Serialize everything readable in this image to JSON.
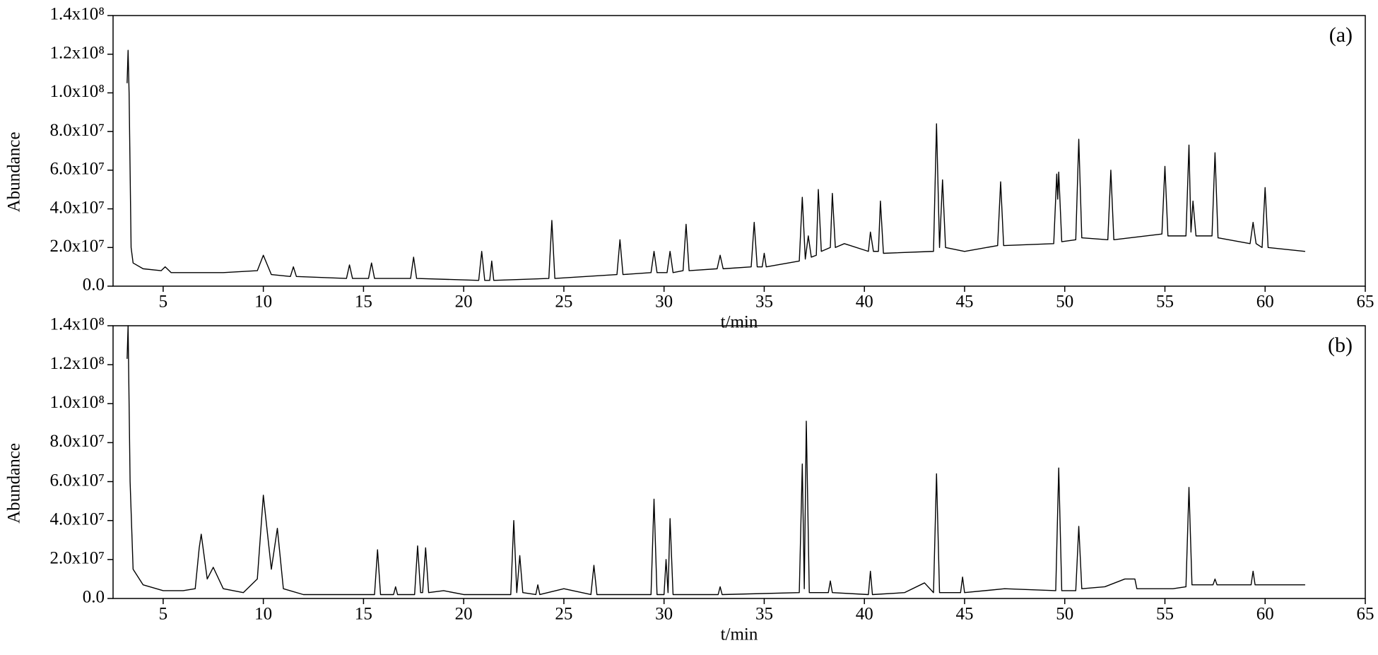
{
  "chart_data": [
    {
      "type": "line",
      "annotation": "(a)",
      "ylabel": "Abundance",
      "xlabel": "t/min",
      "color": "#000000",
      "xlim": [
        2.5,
        65
      ],
      "xticks": [
        5,
        10,
        15,
        20,
        25,
        30,
        35,
        40,
        45,
        50,
        55,
        60,
        65
      ],
      "ylim": [
        0,
        140000000.0
      ],
      "yticks": [
        {
          "value": 0,
          "label": "0.0"
        },
        {
          "value": 20000000.0,
          "label": "2.0x10⁷"
        },
        {
          "value": 40000000.0,
          "label": "4.0x10⁷"
        },
        {
          "value": 60000000.0,
          "label": "6.0x10⁷"
        },
        {
          "value": 80000000.0,
          "label": "8.0x10⁷"
        },
        {
          "value": 100000000.0,
          "label": "1.0x10⁸"
        },
        {
          "value": 120000000.0,
          "label": "1.2x10⁸"
        },
        {
          "value": 140000000.0,
          "label": "1.4x10⁸"
        }
      ],
      "x": [
        3.2,
        3.25,
        3.3,
        3.4,
        3.5,
        4,
        4.9,
        5.1,
        5.4,
        6,
        8,
        9.7,
        10,
        10.4,
        11.35,
        11.5,
        11.65,
        14.15,
        14.3,
        14.45,
        15.25,
        15.4,
        15.55,
        17.35,
        17.5,
        17.65,
        20.75,
        20.9,
        21.05,
        21.3,
        21.4,
        21.5,
        24.25,
        24.4,
        24.55,
        27.65,
        27.8,
        27.95,
        29.35,
        29.5,
        29.65,
        30.15,
        30.3,
        30.45,
        30.95,
        31.1,
        31.25,
        32.65,
        32.8,
        32.95,
        34.35,
        34.5,
        34.65,
        34.9,
        35,
        35.1,
        36.75,
        36.9,
        37.05,
        37.2,
        37.35,
        37.6,
        37.7,
        37.85,
        38.3,
        38.4,
        38.55,
        39,
        40.2,
        40.3,
        40.45,
        40.7,
        40.8,
        40.95,
        43.45,
        43.6,
        43.75,
        43.9,
        44.05,
        45,
        46.65,
        46.8,
        46.95,
        49.45,
        49.6,
        49.65,
        49.7,
        49.85,
        50.55,
        50.7,
        50.85,
        52.15,
        52.3,
        52.45,
        54.85,
        55,
        55.15,
        56.05,
        56.2,
        56.3,
        56.4,
        56.55,
        57.35,
        57.5,
        57.65,
        59.25,
        59.4,
        59.55,
        59.85,
        60,
        60.15,
        62
      ],
      "values": [
        105000000.0,
        122000000.0,
        100000000.0,
        20000000.0,
        12000000.0,
        9000000.0,
        8000000.0,
        10000000.0,
        7000000.0,
        7000000.0,
        7000000.0,
        8000000.0,
        16000000.0,
        6000000.0,
        5000000.0,
        10000000.0,
        5000000.0,
        4000000.0,
        11000000.0,
        4000000.0,
        4000000.0,
        12000000.0,
        4000000.0,
        4000000.0,
        15000000.0,
        4000000.0,
        3000000.0,
        18000000.0,
        3000000.0,
        3000000.0,
        13000000.0,
        3000000.0,
        4000000.0,
        34000000.0,
        4000000.0,
        6000000.0,
        24000000.0,
        6000000.0,
        7000000.0,
        18000000.0,
        7000000.0,
        7000000.0,
        18000000.0,
        7000000.0,
        8000000.0,
        32000000.0,
        8000000.0,
        9000000.0,
        16000000.0,
        9000000.0,
        10000000.0,
        33000000.0,
        10000000.0,
        10000000.0,
        17000000.0,
        10000000.0,
        13000000.0,
        46000000.0,
        14000000.0,
        26000000.0,
        15000000.0,
        16000000.0,
        50000000.0,
        18000000.0,
        20000000.0,
        48000000.0,
        20000000.0,
        22000000.0,
        18000000.0,
        28000000.0,
        18000000.0,
        18000000.0,
        44000000.0,
        17000000.0,
        18000000.0,
        84000000.0,
        20000000.0,
        55000000.0,
        20000000.0,
        18000000.0,
        21000000.0,
        54000000.0,
        21000000.0,
        22000000.0,
        58000000.0,
        45000000.0,
        59000000.0,
        23000000.0,
        24000000.0,
        76000000.0,
        25000000.0,
        24000000.0,
        60000000.0,
        24000000.0,
        27000000.0,
        62000000.0,
        26000000.0,
        26000000.0,
        73000000.0,
        28000000.0,
        44000000.0,
        26000000.0,
        26000000.0,
        69000000.0,
        25000000.0,
        22000000.0,
        33000000.0,
        22000000.0,
        20000000.0,
        51000000.0,
        20000000.0,
        18000000.0
      ]
    },
    {
      "type": "line",
      "annotation": "(b)",
      "ylabel": "Abundance",
      "xlabel": "t/min",
      "color": "#000000",
      "xlim": [
        2.5,
        65
      ],
      "xticks": [
        5,
        10,
        15,
        20,
        25,
        30,
        35,
        40,
        45,
        50,
        55,
        60,
        65
      ],
      "ylim": [
        0,
        140000000.0
      ],
      "yticks": [
        {
          "value": 0,
          "label": "0.0"
        },
        {
          "value": 20000000.0,
          "label": "2.0x10⁷"
        },
        {
          "value": 40000000.0,
          "label": "4.0x10⁷"
        },
        {
          "value": 60000000.0,
          "label": "6.0x10⁷"
        },
        {
          "value": 80000000.0,
          "label": "8.0x10⁷"
        },
        {
          "value": 100000000.0,
          "label": "1.0x10⁸"
        },
        {
          "value": 120000000.0,
          "label": "1.2x10⁸"
        },
        {
          "value": 140000000.0,
          "label": "1.4x10⁸"
        }
      ],
      "x": [
        3.2,
        3.25,
        3.35,
        3.5,
        4,
        5,
        6,
        6.6,
        6.8,
        6.9,
        7.2,
        7.5,
        8,
        9,
        9.7,
        10,
        10.4,
        10.7,
        11,
        12,
        15.55,
        15.7,
        15.85,
        16.5,
        16.6,
        16.7,
        17.55,
        17.7,
        17.85,
        17.95,
        18.1,
        18.25,
        19,
        20,
        22.35,
        22.5,
        22.65,
        22.8,
        22.95,
        23.6,
        23.7,
        23.8,
        25,
        26.35,
        26.5,
        26.65,
        29.35,
        29.5,
        29.65,
        30,
        30.1,
        30.2,
        30.3,
        30.45,
        32.7,
        32.8,
        32.9,
        36.75,
        36.9,
        37,
        37.1,
        37.25,
        38.2,
        38.3,
        38.4,
        40.2,
        40.3,
        40.4,
        42,
        43,
        43.45,
        43.6,
        43.75,
        44.8,
        44.9,
        45,
        47,
        49.55,
        49.7,
        49.85,
        50.55,
        50.7,
        50.85,
        52,
        53,
        53.5,
        53.6,
        55.4,
        56.05,
        56.2,
        56.35,
        57.4,
        57.5,
        57.6,
        59.3,
        59.4,
        59.5,
        60,
        62
      ],
      "values": [
        123000000.0,
        140000000.0,
        60000000.0,
        15000000.0,
        7000000.0,
        4000000.0,
        4000000.0,
        5000000.0,
        26000000.0,
        33000000.0,
        10000000.0,
        16000000.0,
        5000000.0,
        3000000.0,
        10000000.0,
        53000000.0,
        15000000.0,
        36000000.0,
        5000000.0,
        2000000.0,
        2000000.0,
        25000000.0,
        2000000.0,
        2000000.0,
        6000000.0,
        2000000.0,
        2000000.0,
        27000000.0,
        3000000.0,
        3000000.0,
        26000000.0,
        3000000.0,
        4000000.0,
        2000000.0,
        2000000.0,
        40000000.0,
        3000000.0,
        22000000.0,
        3000000.0,
        2000000.0,
        7000000.0,
        2000000.0,
        5000000.0,
        2000000.0,
        17000000.0,
        2000000.0,
        2000000.0,
        51000000.0,
        2000000.0,
        2000000.0,
        20000000.0,
        3000000.0,
        41000000.0,
        2000000.0,
        2000000.0,
        6000000.0,
        2000000.0,
        3000000.0,
        69000000.0,
        5000000.0,
        91000000.0,
        3000000.0,
        3000000.0,
        9000000.0,
        3000000.0,
        2000000.0,
        14000000.0,
        2000000.0,
        3000000.0,
        8000000.0,
        3000000.0,
        64000000.0,
        3000000.0,
        3000000.0,
        11000000.0,
        3000000.0,
        5000000.0,
        4000000.0,
        67000000.0,
        4000000.0,
        4000000.0,
        37000000.0,
        5000000.0,
        6000000.0,
        10000000.0,
        10000000.0,
        5000000.0,
        5000000.0,
        6000000.0,
        57000000.0,
        7000000.0,
        7000000.0,
        10000000.0,
        7000000.0,
        7000000.0,
        14000000.0,
        7000000.0,
        7000000.0,
        7000000.0
      ]
    }
  ]
}
